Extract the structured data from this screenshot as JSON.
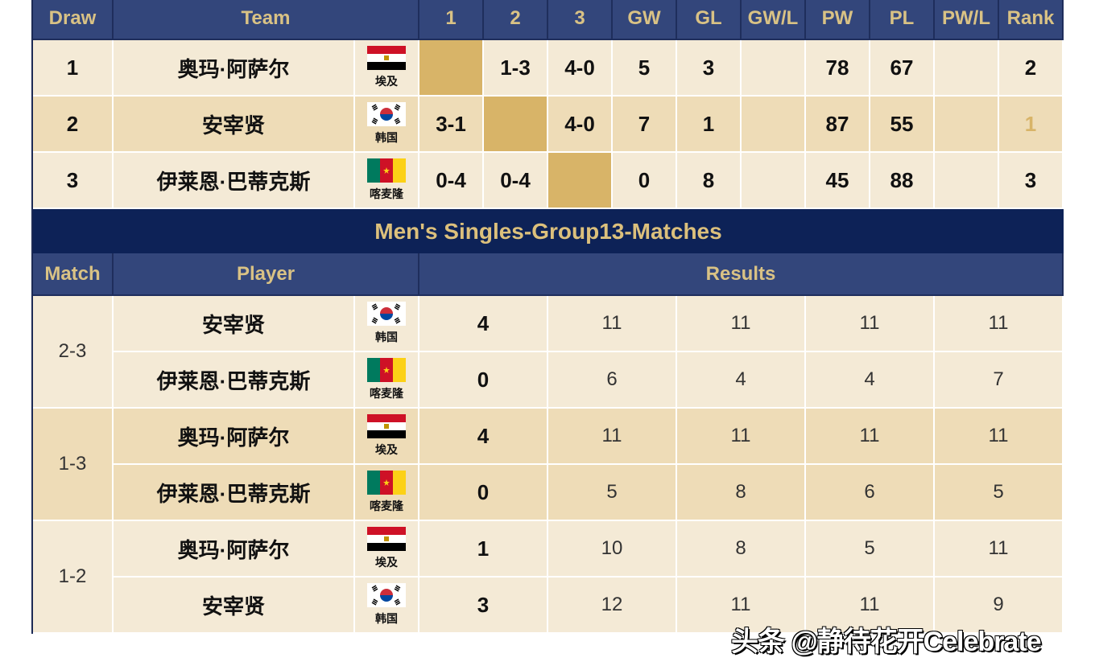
{
  "colors": {
    "header_bg": "#33467b",
    "header_text": "#d9c285",
    "title_bg": "#0d2257",
    "self_cell": "#d8b468",
    "row_light": "#f4ead6",
    "row_dark": "#eedcb7"
  },
  "standings": {
    "headers": [
      "Draw",
      "Team",
      "1",
      "2",
      "3",
      "GW",
      "GL",
      "GW/L",
      "PW",
      "PL",
      "PW/L",
      "Rank"
    ],
    "rows": [
      {
        "draw": "1",
        "team": "奥玛·阿萨尔",
        "country": "埃及",
        "flag": "egypt-flag-icon",
        "r1": "",
        "r2": "1-3",
        "r3": "4-0",
        "gw": "5",
        "gl": "3",
        "gwl": "",
        "pw": "78",
        "pl": "67",
        "pwl": "",
        "rank": "2"
      },
      {
        "draw": "2",
        "team": "安宰贤",
        "country": "韩国",
        "flag": "korea-flag-icon",
        "r1": "3-1",
        "r2": "",
        "r3": "4-0",
        "gw": "7",
        "gl": "1",
        "gwl": "",
        "pw": "87",
        "pl": "55",
        "pwl": "",
        "rank": "1"
      },
      {
        "draw": "3",
        "team": "伊莱恩·巴蒂克斯",
        "country": "喀麦隆",
        "flag": "cameroon-flag-icon",
        "r1": "0-4",
        "r2": "0-4",
        "r3": "",
        "gw": "0",
        "gl": "8",
        "gwl": "",
        "pw": "45",
        "pl": "88",
        "pwl": "",
        "rank": "3"
      }
    ]
  },
  "matches": {
    "title": "Men's Singles-Group13-Matches",
    "headers": {
      "match": "Match",
      "player": "Player",
      "results": "Results"
    },
    "list": [
      {
        "match": "2-3",
        "players": [
          {
            "name": "安宰贤",
            "country": "韩国",
            "flag": "korea-flag-icon",
            "score": "4",
            "games": [
              "11",
              "11",
              "11",
              "11"
            ]
          },
          {
            "name": "伊莱恩·巴蒂克斯",
            "country": "喀麦隆",
            "flag": "cameroon-flag-icon",
            "score": "0",
            "games": [
              "6",
              "4",
              "4",
              "7"
            ]
          }
        ]
      },
      {
        "match": "1-3",
        "players": [
          {
            "name": "奥玛·阿萨尔",
            "country": "埃及",
            "flag": "egypt-flag-icon",
            "score": "4",
            "games": [
              "11",
              "11",
              "11",
              "11"
            ]
          },
          {
            "name": "伊莱恩·巴蒂克斯",
            "country": "喀麦隆",
            "flag": "cameroon-flag-icon",
            "score": "0",
            "games": [
              "5",
              "8",
              "6",
              "5"
            ]
          }
        ]
      },
      {
        "match": "1-2",
        "players": [
          {
            "name": "奥玛·阿萨尔",
            "country": "埃及",
            "flag": "egypt-flag-icon",
            "score": "1",
            "games": [
              "10",
              "8",
              "5",
              "11"
            ]
          },
          {
            "name": "安宰贤",
            "country": "韩国",
            "flag": "korea-flag-icon",
            "score": "3",
            "games": [
              "12",
              "11",
              "11",
              "9"
            ]
          }
        ]
      }
    ]
  },
  "watermark": "头条 @静待花开Celebrate"
}
